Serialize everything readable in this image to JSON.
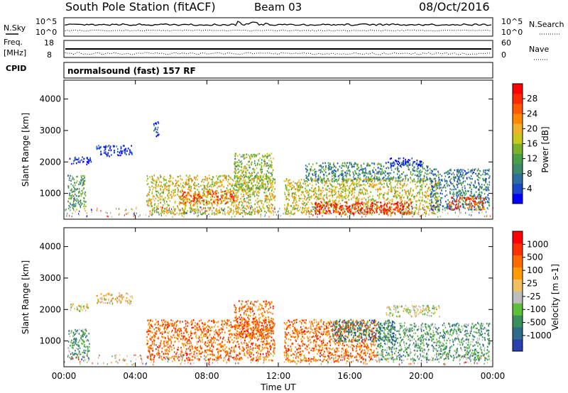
{
  "header": {
    "station": "South Pole Station (fitACF)",
    "beam": "Beam 03",
    "date": "08/Oct/2016"
  },
  "noise_panel": {
    "left_label": "N.Sky",
    "left_ticks": [
      "10^5",
      "10^0"
    ],
    "right_ticks": [
      "10^5",
      "10^0"
    ],
    "right_label": "N.Search"
  },
  "freq_panel": {
    "left_label_1": "Freq.",
    "left_label_2": "[MHz]",
    "left_ticks": [
      "18",
      "8"
    ],
    "right_ticks": [
      "60",
      "0"
    ],
    "right_label": "Nave"
  },
  "cpid_panel": {
    "label": "CPID",
    "mode": "normalsound (fast) 157 RF"
  },
  "chart_data": [
    {
      "type": "heatmap",
      "title": "",
      "xlabel": "Time UT",
      "ylabel": "Slant Range [km]",
      "x_ticks": [
        "00:00",
        "04:00",
        "08:00",
        "12:00",
        "16:00",
        "20:00",
        "00:00"
      ],
      "y_ticks": [
        "1000",
        "2000",
        "3000",
        "4000"
      ],
      "xlim_hours": [
        0,
        24
      ],
      "ylim_km": [
        180,
        4600
      ],
      "colorbar_label": "Power [dB]",
      "colorbar_ticks": [
        "4",
        "8",
        "12",
        "16",
        "20",
        "24",
        "28"
      ],
      "colorbar_colors": [
        "#0000ff",
        "#1b47c9",
        "#2f6fa0",
        "#3f8a6a",
        "#4a9e4a",
        "#7cb22a",
        "#c7c91c",
        "#f2b12b",
        "#ff8a00",
        "#ff5a00",
        "#ff2a00",
        "#ff0000"
      ],
      "regions": [
        {
          "t0": 0.3,
          "t1": 1.5,
          "r0": 1950,
          "r1": 2200,
          "level": 0.08
        },
        {
          "t0": 1.8,
          "t1": 3.8,
          "r0": 2200,
          "r1": 2550,
          "level": 0.08
        },
        {
          "t0": 5.0,
          "t1": 5.3,
          "r0": 2800,
          "r1": 3300,
          "level": 0.12
        },
        {
          "t0": 0.2,
          "t1": 1.2,
          "r0": 500,
          "r1": 1600,
          "level": 0.35
        },
        {
          "t0": 4.6,
          "t1": 11.8,
          "r0": 350,
          "r1": 1600,
          "level": 0.55
        },
        {
          "t0": 9.5,
          "t1": 11.7,
          "r0": 1100,
          "r1": 2300,
          "level": 0.45
        },
        {
          "t0": 6.5,
          "t1": 9.5,
          "r0": 700,
          "r1": 1100,
          "level": 0.8
        },
        {
          "t0": 12.3,
          "t1": 21.0,
          "r0": 350,
          "r1": 1500,
          "level": 0.55
        },
        {
          "t0": 13.5,
          "t1": 20.5,
          "r0": 1400,
          "r1": 2000,
          "level": 0.3
        },
        {
          "t0": 14.0,
          "t1": 19.5,
          "r0": 350,
          "r1": 750,
          "level": 0.95
        },
        {
          "t0": 18.0,
          "t1": 20.0,
          "r0": 1900,
          "r1": 2150,
          "level": 0.05
        },
        {
          "t0": 20.5,
          "t1": 23.8,
          "r0": 500,
          "r1": 1800,
          "level": 0.25
        },
        {
          "t0": 21.5,
          "t1": 23.5,
          "r0": 500,
          "r1": 900,
          "level": 0.85
        }
      ]
    },
    {
      "type": "heatmap",
      "title": "",
      "xlabel": "Time UT",
      "ylabel": "Slant Range [km]",
      "x_ticks": [
        "00:00",
        "04:00",
        "08:00",
        "12:00",
        "16:00",
        "20:00",
        "00:00"
      ],
      "y_ticks": [
        "1000",
        "2000",
        "3000",
        "4000"
      ],
      "xlim_hours": [
        0,
        24
      ],
      "ylim_km": [
        180,
        4600
      ],
      "colorbar_label": "Velocity [m s-1]",
      "colorbar_ticks": [
        "1000",
        "500",
        "100",
        "25",
        "-25",
        "-100",
        "-500",
        "-1000"
      ],
      "colorbar_colors": [
        "#2a3fb0",
        "#2f6b8a",
        "#3a8f5a",
        "#5fbf3a",
        "#bdbdbd",
        "#f0c060",
        "#ff9a00",
        "#ff6a00",
        "#ff3000",
        "#ff0000"
      ],
      "regions": [
        {
          "t0": 0.3,
          "t1": 1.5,
          "r0": 1950,
          "r1": 2200,
          "level": 0.5
        },
        {
          "t0": 1.8,
          "t1": 3.8,
          "r0": 2200,
          "r1": 2550,
          "level": 0.55
        },
        {
          "t0": 0.2,
          "t1": 1.4,
          "r0": 400,
          "r1": 1400,
          "level": 0.3
        },
        {
          "t0": 4.6,
          "t1": 11.8,
          "r0": 400,
          "r1": 1700,
          "level": 0.75
        },
        {
          "t0": 9.5,
          "t1": 11.7,
          "r0": 1100,
          "r1": 2300,
          "level": 0.75
        },
        {
          "t0": 12.3,
          "t1": 17.5,
          "r0": 350,
          "r1": 1700,
          "level": 0.75
        },
        {
          "t0": 17.5,
          "t1": 23.8,
          "r0": 400,
          "r1": 1600,
          "level": 0.3
        },
        {
          "t0": 18.0,
          "t1": 21.0,
          "r0": 1800,
          "r1": 2150,
          "level": 0.45
        },
        {
          "t0": 15.0,
          "t1": 18.5,
          "r0": 1000,
          "r1": 1700,
          "level": 0.2
        }
      ]
    }
  ]
}
